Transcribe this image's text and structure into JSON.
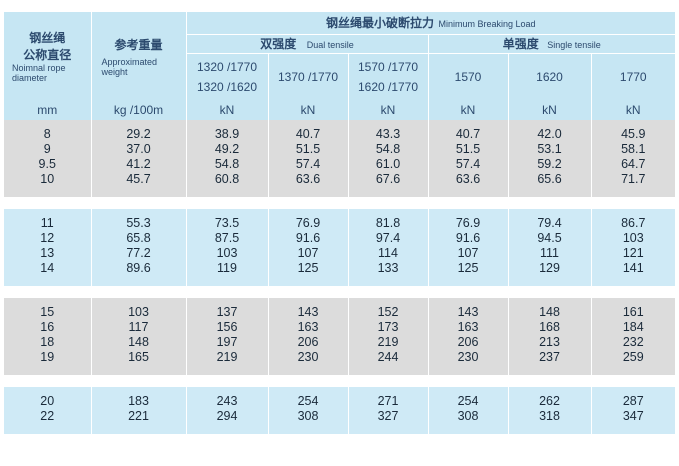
{
  "header": {
    "dia_cn": [
      "钢丝绳",
      "公称直径"
    ],
    "dia_en": "Noimnal rope diameter",
    "weight_cn": "参考重量",
    "weight_en": "Approximated weight",
    "mbl_cn": "钢丝绳最小破断拉力",
    "mbl_en": "Minimum Breaking Load",
    "dual_cn": "双强度",
    "dual_en": "Dual tensile",
    "single_cn": "单强度",
    "single_en": "Single tensile",
    "dual_grades": [
      [
        "1320 /1770",
        "1320 /1620"
      ],
      [
        "1370 /1770"
      ],
      [
        "1570 /1770",
        "1620 /1770"
      ]
    ],
    "single_grades": [
      "1570",
      "1620",
      "1770"
    ],
    "units": [
      "mm",
      "kg /100m",
      "kN",
      "kN",
      "kN",
      "kN",
      "kN",
      "kN"
    ]
  },
  "groups": [
    {
      "rows": [
        [
          "8",
          "29.2",
          "38.9",
          "40.7",
          "43.3",
          "40.7",
          "42.0",
          "45.9"
        ],
        [
          "9",
          "37.0",
          "49.2",
          "51.5",
          "54.8",
          "51.5",
          "53.1",
          "58.1"
        ],
        [
          "9.5",
          "41.2",
          "54.8",
          "57.4",
          "61.0",
          "57.4",
          "59.2",
          "64.7"
        ],
        [
          "10",
          "45.7",
          "60.8",
          "63.6",
          "67.6",
          "63.6",
          "65.6",
          "71.7"
        ]
      ]
    },
    {
      "rows": [
        [
          "11",
          "55.3",
          "73.5",
          "76.9",
          "81.8",
          "76.9",
          "79.4",
          "86.7"
        ],
        [
          "12",
          "65.8",
          "87.5",
          "91.6",
          "97.4",
          "91.6",
          "94.5",
          "103"
        ],
        [
          "13",
          "77.2",
          "103",
          "107",
          "114",
          "107",
          "111",
          "121"
        ],
        [
          "14",
          "89.6",
          "119",
          "125",
          "133",
          "125",
          "129",
          "141"
        ]
      ]
    },
    {
      "rows": [
        [
          "15",
          "103",
          "137",
          "143",
          "152",
          "143",
          "148",
          "161"
        ],
        [
          "16",
          "117",
          "156",
          "163",
          "173",
          "163",
          "168",
          "184"
        ],
        [
          "18",
          "148",
          "197",
          "206",
          "219",
          "206",
          "213",
          "232"
        ],
        [
          "19",
          "165",
          "219",
          "230",
          "244",
          "230",
          "237",
          "259"
        ]
      ]
    },
    {
      "rows": [
        [
          "20",
          "183",
          "243",
          "254",
          "271",
          "254",
          "262",
          "287"
        ],
        [
          "22",
          "221",
          "294",
          "308",
          "327",
          "308",
          "318",
          "347"
        ]
      ]
    }
  ]
}
